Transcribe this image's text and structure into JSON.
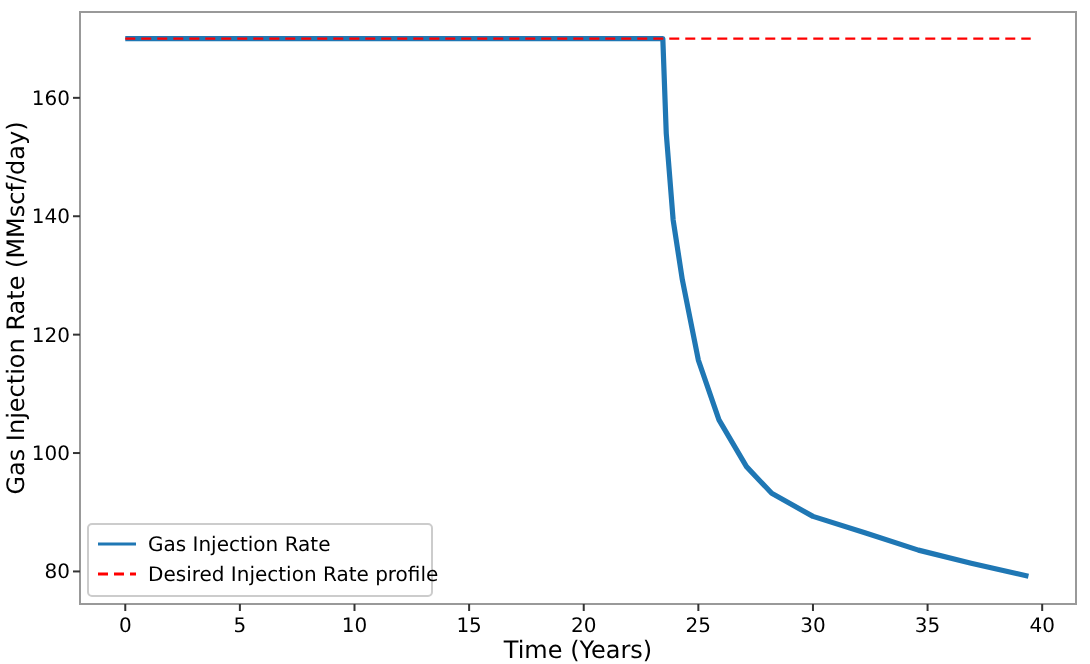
{
  "chart_data": {
    "type": "line",
    "xlabel": "Time (Years)",
    "ylabel": "Gas Injection Rate (MMscf/day)",
    "xlim": [
      -1.975,
      41.475
    ],
    "ylim": [
      74.5,
      174.5
    ],
    "xticks": [
      0,
      5,
      10,
      15,
      20,
      25,
      30,
      35,
      40
    ],
    "yticks": [
      80,
      100,
      120,
      140,
      160
    ],
    "grid": false,
    "legend": "bottom left",
    "series": [
      {
        "name": "Gas Injection Rate",
        "color": "#1f77b4",
        "line_style": "solid",
        "x": [
          0,
          23.45,
          23.6,
          23.9,
          24.3,
          25.0,
          25.9,
          27.1,
          28.2,
          30.0,
          32.3,
          34.6,
          36.9,
          39.4
        ],
        "values": [
          170,
          170,
          154,
          139.4,
          129.3,
          115.7,
          105.6,
          97.7,
          93.2,
          89.3,
          86.5,
          83.6,
          81.4,
          79.2
        ]
      },
      {
        "name": "Desired Injection Rate profile",
        "color": "#ff0000",
        "line_style": "dashed",
        "x": [
          0,
          39.5
        ],
        "values": [
          170,
          170
        ]
      }
    ]
  }
}
